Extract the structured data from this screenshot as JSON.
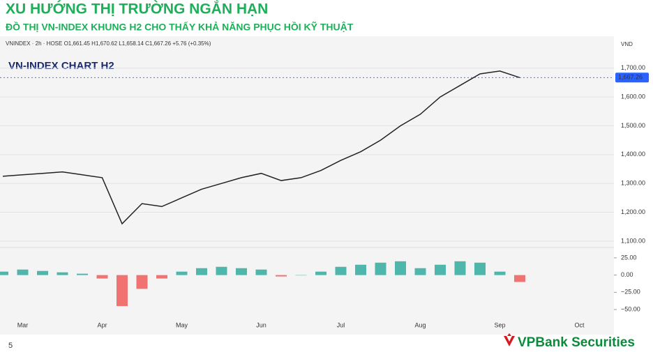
{
  "header": {
    "title": "XU HƯỚNG THỊ TRƯỜNG NGẮN HẠN",
    "subtitle": "ĐỒ THỊ VN-INDEX KHUNG H2 CHO THẤY KHẢ NĂNG PHỤC HỒI KỸ THUẬT"
  },
  "ticker_line": "VNINDEX · 2h · HOSE  O1,661.45  H1,670.62  L1,658.14  C1,667.26  +5.76 (+0.35%)",
  "unit": "VND",
  "footer": {
    "brand": "VPBank Securities",
    "page": "5"
  },
  "chart_data": [
    {
      "type": "line",
      "title": "VN-INDEX CHART H2",
      "categories": [
        null,
        "Mar",
        null,
        null,
        null,
        "Apr",
        null,
        null,
        null,
        "May",
        null,
        null,
        null,
        "Jun",
        null,
        null,
        null,
        "Jul",
        null,
        null,
        null,
        "Aug",
        null,
        null,
        null,
        "Sep",
        null,
        null,
        null,
        "Oct"
      ],
      "series": [
        {
          "name": "VNINDEX",
          "color": "#222222",
          "values": [
            1325,
            1330,
            1335,
            1340,
            1330,
            1320,
            1160,
            1230,
            1220,
            1250,
            1280,
            1300,
            1320,
            1335,
            1310,
            1320,
            1345,
            1380,
            1410,
            1450,
            1500,
            1540,
            1600,
            1640,
            1680,
            1690,
            1667.26,
            null,
            null,
            null
          ]
        }
      ],
      "last_price": {
        "value": 1667.26,
        "label": "1,667.26"
      },
      "last_price_color": "#2962ff",
      "ylim": [
        1078,
        1755
      ],
      "yticks": [
        {
          "value": 1100,
          "label": "1,100.00"
        },
        {
          "value": 1200,
          "label": "1,200.00"
        },
        {
          "value": 1300,
          "label": "1,300.00"
        },
        {
          "value": 1400,
          "label": "1,400.00"
        },
        {
          "value": 1500,
          "label": "1,500.00"
        },
        {
          "value": 1600,
          "label": "1,600.00"
        },
        {
          "value": 1700,
          "label": "1,700.00"
        }
      ],
      "grid": true
    },
    {
      "type": "bar",
      "color_up": "#26a69a",
      "color_down": "#ef5350",
      "values": [
        5,
        8,
        6,
        4,
        2,
        -5,
        -45,
        -20,
        -5,
        5,
        10,
        12,
        10,
        8,
        -2,
        0,
        5,
        12,
        15,
        18,
        20,
        10,
        15,
        20,
        18,
        5,
        -10,
        null,
        null,
        null
      ],
      "ylim": [
        -58,
        33
      ],
      "yticks": [
        {
          "value": 25,
          "label": "25.00"
        },
        {
          "value": 0,
          "label": "0.00"
        },
        {
          "value": -25,
          "label": "−25.00"
        },
        {
          "value": -50,
          "label": "−50.00"
        }
      ]
    }
  ]
}
